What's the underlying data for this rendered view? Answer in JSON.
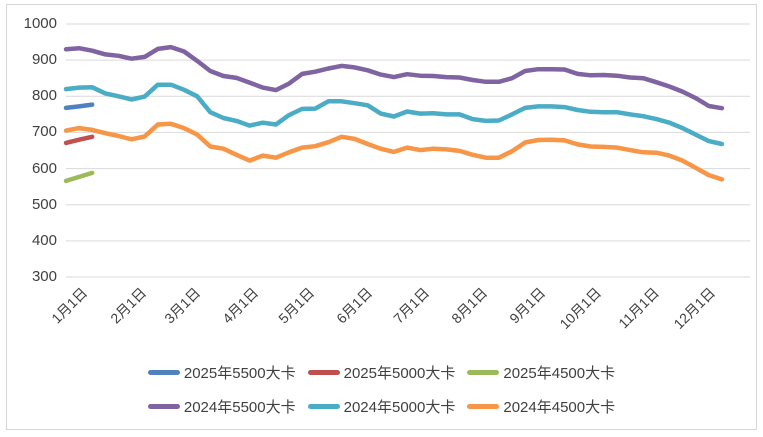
{
  "chart_data": {
    "type": "line",
    "title": "",
    "grid": true,
    "legend_position": "bottom",
    "y_axis": {
      "min": 300,
      "max": 1000,
      "step": 100,
      "ticks": [
        "1000",
        "900",
        "800",
        "700",
        "600",
        "500",
        "400",
        "300"
      ]
    },
    "x_axis": {
      "labels": [
        "1月1日",
        "2月1日",
        "3月1日",
        "4月1日",
        "5月1日",
        "6月1日",
        "7月1日",
        "8月1日",
        "9月1日",
        "10月1日",
        "11月1日",
        "12月1日"
      ],
      "label_days": [
        0,
        31,
        60,
        91,
        121,
        152,
        182,
        213,
        244,
        274,
        305,
        335
      ],
      "total_days": 365
    },
    "series": [
      {
        "name": "2025年5500大卡",
        "color": "#4F81BD",
        "start_day": 0,
        "step_days": 7,
        "values": [
          768,
          772,
          777
        ]
      },
      {
        "name": "2025年5000大卡",
        "color": "#C0504D",
        "start_day": 0,
        "step_days": 7,
        "values": [
          671,
          680,
          688
        ]
      },
      {
        "name": "2025年4500大卡",
        "color": "#9BBB59",
        "start_day": 0,
        "step_days": 7,
        "values": [
          566,
          577,
          588
        ]
      },
      {
        "name": "2024年5500大卡",
        "color": "#8064A2",
        "start_day": 0,
        "step_days": 7,
        "values": [
          930,
          933,
          926,
          916,
          912,
          904,
          909,
          931,
          936,
          924,
          898,
          870,
          856,
          851,
          838,
          824,
          817,
          835,
          862,
          868,
          877,
          884,
          880,
          872,
          860,
          853,
          861,
          857,
          856,
          853,
          852,
          845,
          840,
          840,
          850,
          870,
          875,
          875,
          874,
          862,
          858,
          859,
          857,
          852,
          850,
          839,
          827,
          813,
          795,
          773,
          767
        ]
      },
      {
        "name": "2024年5000大卡",
        "color": "#4BACC6",
        "start_day": 0,
        "step_days": 7,
        "values": [
          820,
          824,
          825,
          808,
          800,
          791,
          799,
          832,
          832,
          818,
          800,
          756,
          740,
          732,
          719,
          727,
          722,
          748,
          765,
          766,
          786,
          786,
          781,
          775,
          752,
          744,
          758,
          752,
          753,
          750,
          750,
          737,
          732,
          733,
          750,
          768,
          772,
          772,
          770,
          762,
          757,
          756,
          756,
          750,
          745,
          737,
          727,
          712,
          694,
          676,
          668
        ]
      },
      {
        "name": "2024年4500大卡",
        "color": "#F79646",
        "start_day": 0,
        "step_days": 7,
        "values": [
          705,
          712,
          707,
          698,
          690,
          681,
          689,
          722,
          724,
          712,
          694,
          661,
          655,
          638,
          622,
          636,
          630,
          645,
          658,
          662,
          673,
          688,
          682,
          668,
          655,
          646,
          658,
          651,
          655,
          653,
          649,
          638,
          630,
          630,
          648,
          672,
          679,
          680,
          678,
          667,
          661,
          660,
          658,
          651,
          645,
          644,
          636,
          622,
          602,
          582,
          570
        ]
      }
    ],
    "legend_rows": [
      [
        "2025年5500大卡",
        "2025年5000大卡",
        "2025年4500大卡"
      ],
      [
        "2024年5500大卡",
        "2024年5000大卡",
        "2024年4500大卡"
      ]
    ]
  },
  "colors": {
    "grid": "#D9D9D9",
    "axis_text": "#404040",
    "border": "#D7D7D7",
    "background": "#FFFFFF"
  }
}
